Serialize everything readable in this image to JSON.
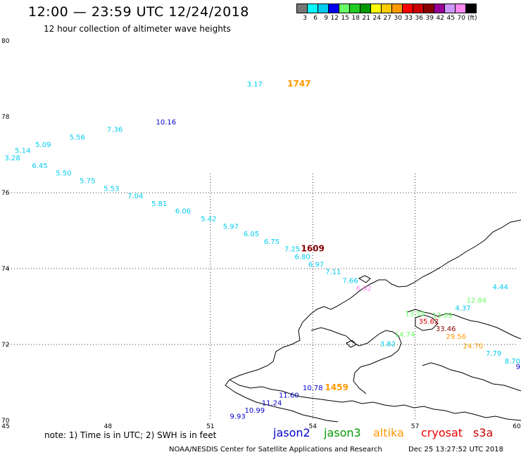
{
  "header": {
    "title": "12:00 — 23:59 UTC 12/24/2018",
    "subtitle": "12 hour collection of altimeter wave heights"
  },
  "legend": {
    "unit": "(ft)",
    "labels": [
      "3",
      "6",
      "9",
      "12",
      "15",
      "18",
      "21",
      "24",
      "27",
      "30",
      "33",
      "36",
      "39",
      "42",
      "45",
      "70"
    ],
    "colors": [
      "#777777",
      "#00ffff",
      "#00ccee",
      "#0000ee",
      "#66ff66",
      "#22cc22",
      "#009900",
      "#ffff00",
      "#ffcc00",
      "#ff9900",
      "#ff0000",
      "#cc0000",
      "#880000",
      "#990099",
      "#cc99ff",
      "#ff88ee",
      "#000000"
    ]
  },
  "axes": {
    "x_ticks": [
      "45",
      "48",
      "51",
      "54",
      "57",
      "60"
    ],
    "y_ticks": [
      "80",
      "78",
      "76",
      "74",
      "72",
      "70"
    ],
    "lon_range": [
      45,
      60
    ],
    "lat_range": [
      70,
      80
    ]
  },
  "observations": [
    {
      "v": "3.17",
      "lon": 52.3,
      "lat": 78.8,
      "c": "#00ccee",
      "s": 10
    },
    {
      "v": "1747",
      "lon": 53.6,
      "lat": 78.8,
      "c": "#ff9900",
      "s": 12
    },
    {
      "v": "10.16",
      "lon": 49.7,
      "lat": 77.8,
      "c": "#0000cc",
      "s": 10
    },
    {
      "v": "7.36",
      "lon": 48.2,
      "lat": 77.6,
      "c": "#00ccee",
      "s": 10
    },
    {
      "v": "5.56",
      "lon": 47.1,
      "lat": 77.4,
      "c": "#00ccee",
      "s": 10
    },
    {
      "v": "5.09",
      "lon": 46.1,
      "lat": 77.2,
      "c": "#00ccee",
      "s": 10
    },
    {
      "v": "5.14",
      "lon": 45.5,
      "lat": 77.05,
      "c": "#00ccee",
      "s": 10
    },
    {
      "v": "3.28",
      "lon": 45.2,
      "lat": 76.85,
      "c": "#00ccee",
      "s": 10
    },
    {
      "v": "6.45",
      "lon": 46.0,
      "lat": 76.65,
      "c": "#00ccee",
      "s": 10
    },
    {
      "v": "5.50",
      "lon": 46.7,
      "lat": 76.45,
      "c": "#00ccee",
      "s": 10
    },
    {
      "v": "5.75",
      "lon": 47.4,
      "lat": 76.25,
      "c": "#00ccee",
      "s": 10
    },
    {
      "v": "5.53",
      "lon": 48.1,
      "lat": 76.05,
      "c": "#00ccee",
      "s": 10
    },
    {
      "v": "7.04",
      "lon": 48.8,
      "lat": 75.85,
      "c": "#00ccee",
      "s": 10
    },
    {
      "v": "5.81",
      "lon": 49.5,
      "lat": 75.65,
      "c": "#00ccee",
      "s": 10
    },
    {
      "v": "6.06",
      "lon": 50.2,
      "lat": 75.45,
      "c": "#00ccee",
      "s": 10
    },
    {
      "v": "5.42",
      "lon": 50.95,
      "lat": 75.25,
      "c": "#00ccee",
      "s": 10
    },
    {
      "v": "5.97",
      "lon": 51.6,
      "lat": 75.05,
      "c": "#00ccee",
      "s": 10
    },
    {
      "v": "6.05",
      "lon": 52.2,
      "lat": 74.85,
      "c": "#00ccee",
      "s": 10
    },
    {
      "v": "6.75",
      "lon": 52.8,
      "lat": 74.65,
      "c": "#00ccee",
      "s": 10
    },
    {
      "v": "7.25",
      "lon": 53.4,
      "lat": 74.45,
      "c": "#00ccee",
      "s": 10
    },
    {
      "v": "1609",
      "lon": 54.0,
      "lat": 74.45,
      "c": "#880000",
      "s": 12
    },
    {
      "v": "6.80",
      "lon": 53.7,
      "lat": 74.25,
      "c": "#00ccee",
      "s": 10
    },
    {
      "v": "6.97",
      "lon": 54.1,
      "lat": 74.05,
      "c": "#00ccee",
      "s": 10
    },
    {
      "v": "7.11",
      "lon": 54.6,
      "lat": 73.85,
      "c": "#00ccee",
      "s": 10
    },
    {
      "v": "7.66",
      "lon": 55.1,
      "lat": 73.62,
      "c": "#00ccee",
      "s": 10
    },
    {
      "v": "6.92",
      "lon": 55.5,
      "lat": 73.42,
      "c": "#ff88ee",
      "s": 10
    },
    {
      "v": "4.44",
      "lon": 59.5,
      "lat": 73.45,
      "c": "#00ccee",
      "s": 10
    },
    {
      "v": "12.84",
      "lon": 58.8,
      "lat": 73.1,
      "c": "#66ff66",
      "s": 10
    },
    {
      "v": "4.37",
      "lon": 58.4,
      "lat": 72.9,
      "c": "#00ccee",
      "s": 10
    },
    {
      "v": "13.59",
      "lon": 57.0,
      "lat": 72.75,
      "c": "#66ff66",
      "s": 10
    },
    {
      "v": "13.09",
      "lon": 57.8,
      "lat": 72.7,
      "c": "#66ff66",
      "s": 10
    },
    {
      "v": "35.62",
      "lon": 57.4,
      "lat": 72.55,
      "c": "#cc0000",
      "s": 10
    },
    {
      "v": "33.46",
      "lon": 57.9,
      "lat": 72.35,
      "c": "#880000",
      "s": 10
    },
    {
      "v": "14.74",
      "lon": 56.7,
      "lat": 72.2,
      "c": "#66ff66",
      "s": 10
    },
    {
      "v": "29.56",
      "lon": 58.2,
      "lat": 72.15,
      "c": "#ff9900",
      "s": 10
    },
    {
      "v": "3.82",
      "lon": 56.2,
      "lat": 71.95,
      "c": "#00ccee",
      "s": 10
    },
    {
      "v": "24.70",
      "lon": 58.7,
      "lat": 71.9,
      "c": "#ff9900",
      "s": 10
    },
    {
      "v": "7.79",
      "lon": 59.3,
      "lat": 71.7,
      "c": "#00ccee",
      "s": 10
    },
    {
      "v": "8.70",
      "lon": 59.7,
      "lat": 71.5,
      "c": "#00ccee",
      "s": 10
    },
    {
      "v": "9",
      "lon": 59.95,
      "lat": 71.35,
      "c": "#0000cc",
      "s": 10
    },
    {
      "v": "10.78",
      "lon": 54.0,
      "lat": 70.8,
      "c": "#0000cc",
      "s": 10
    },
    {
      "v": "1459",
      "lon": 54.7,
      "lat": 70.8,
      "c": "#ff9900",
      "s": 12
    },
    {
      "v": "11.60",
      "lon": 53.3,
      "lat": 70.6,
      "c": "#0000cc",
      "s": 10
    },
    {
      "v": "11.24",
      "lon": 52.8,
      "lat": 70.4,
      "c": "#0000cc",
      "s": 10
    },
    {
      "v": "10.99",
      "lon": 52.3,
      "lat": 70.2,
      "c": "#0000cc",
      "s": 10
    },
    {
      "v": "9.93",
      "lon": 51.8,
      "lat": 70.05,
      "c": "#0000cc",
      "s": 10
    }
  ],
  "note": "note:  1) Time is in UTC;  2) SWH is in feet",
  "satellites": [
    {
      "name": "jason2",
      "color": "#0000cc"
    },
    {
      "name": "jason3",
      "color": "#009900"
    },
    {
      "name": "altika",
      "color": "#ff9900"
    },
    {
      "name": "cryosat",
      "color": "#ee0000"
    },
    {
      "name": "s3a",
      "color": "#cc0000"
    }
  ],
  "footer": {
    "credit": "NOAA/NESDIS Center for Satellite Applications and Research",
    "timestamp": "Dec 25 13:27:52 UTC 2018"
  }
}
